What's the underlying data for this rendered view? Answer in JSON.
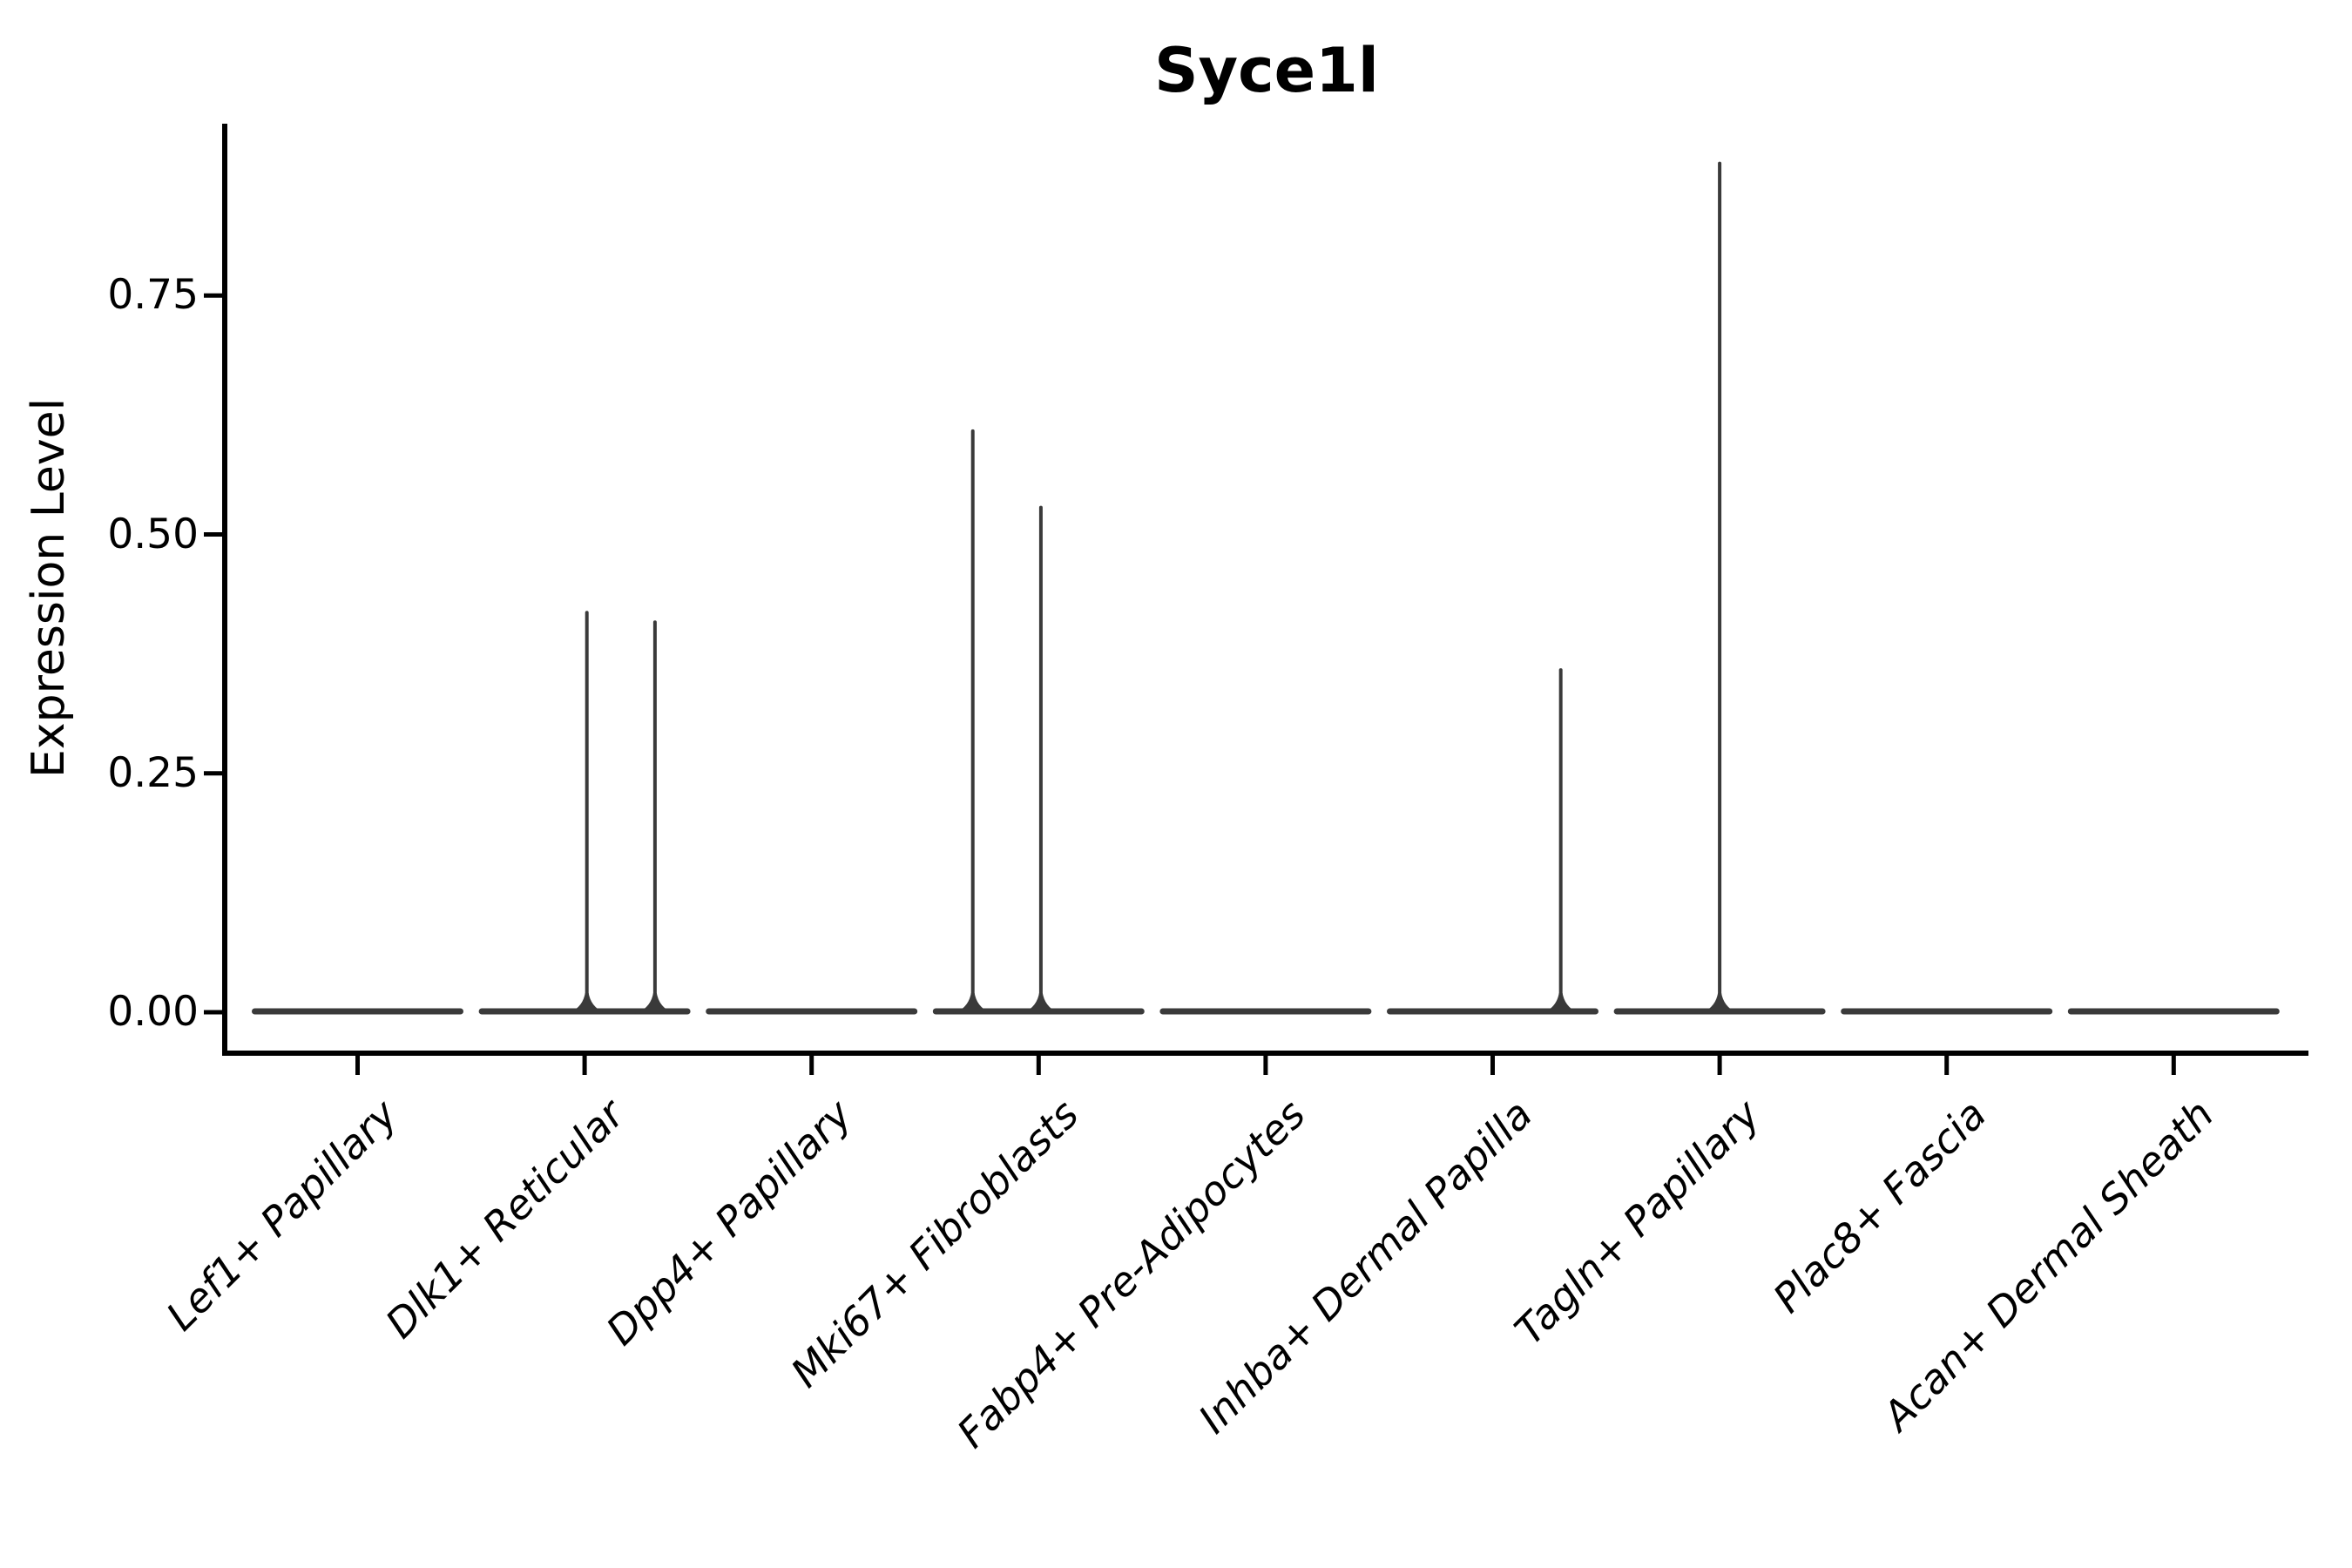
{
  "chart_data": {
    "type": "violin",
    "title": "Syce1l",
    "xlabel": "",
    "ylabel": "Expression Level",
    "ylim": [
      -0.044,
      0.932
    ],
    "grid": false,
    "legend": "none",
    "yticks": [
      {
        "value": 0.0,
        "label": "0.00"
      },
      {
        "value": 0.25,
        "label": "0.25"
      },
      {
        "value": 0.5,
        "label": "0.50"
      },
      {
        "value": 0.75,
        "label": "0.75"
      }
    ],
    "categories": [
      "Lef1+ Papillary",
      "Dlk1+ Reticular",
      "Dpp4+ Papillary",
      "Mki67+ Fibroblasts",
      "Fabp4+ Pre-Adipocytes",
      "Inhba+ Dermal Papilla",
      "Tagln+ Papillary",
      "Plac8+ Fascia",
      "Acan+ Dermal Sheath"
    ],
    "violins": [
      {
        "category": "Lef1+ Papillary",
        "base_value": 0,
        "spikes": []
      },
      {
        "category": "Dlk1+ Reticular",
        "base_value": 0,
        "spikes": [
          {
            "value": 0.42,
            "x_offset_frac": 0.01
          },
          {
            "value": 0.41,
            "x_offset_frac": 0.31
          }
        ]
      },
      {
        "category": "Dpp4+ Papillary",
        "base_value": 0,
        "spikes": []
      },
      {
        "category": "Mki67+ Fibroblasts",
        "base_value": 0,
        "spikes": [
          {
            "value": 0.61,
            "x_offset_frac": -0.29
          },
          {
            "value": 0.53,
            "x_offset_frac": 0.01
          }
        ]
      },
      {
        "category": "Fabp4+ Pre-Adipocytes",
        "base_value": 0,
        "spikes": []
      },
      {
        "category": "Inhba+ Dermal Papilla",
        "base_value": 0,
        "spikes": [
          {
            "value": 0.36,
            "x_offset_frac": 0.3
          }
        ]
      },
      {
        "category": "Tagln+ Papillary",
        "base_value": 0,
        "spikes": [
          {
            "value": 0.89,
            "x_offset_frac": 0.0
          }
        ]
      },
      {
        "category": "Plac8+ Fascia",
        "base_value": 0,
        "spikes": []
      },
      {
        "category": "Acan+ Dermal Sheath",
        "base_value": 0,
        "spikes": []
      }
    ],
    "colors": {
      "violin_stroke": "#3a3a3a",
      "axis": "#000000",
      "text": "#000000",
      "background": "#ffffff"
    }
  }
}
